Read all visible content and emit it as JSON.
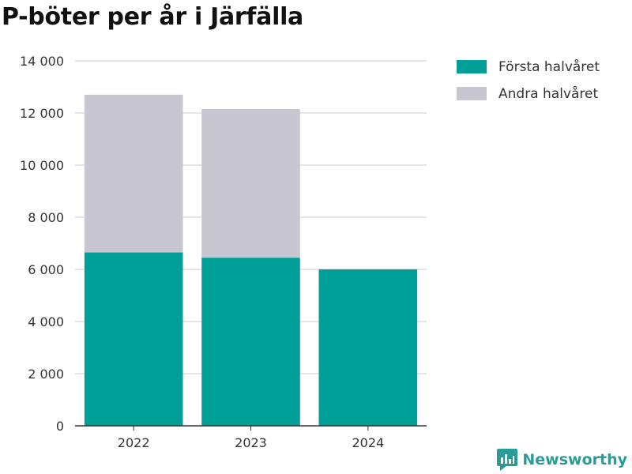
{
  "chart_data": {
    "type": "bar",
    "stacked": true,
    "title": "P-böter per år i Järfälla",
    "xlabel": "",
    "ylabel": "",
    "categories": [
      "2022",
      "2023",
      "2024"
    ],
    "series": [
      {
        "name": "Första halvåret",
        "color": "#00a099",
        "values": [
          6650,
          6450,
          6000
        ]
      },
      {
        "name": "Andra halvåret",
        "color": "#c8c7d1",
        "values": [
          6050,
          5700,
          0
        ]
      }
    ],
    "ylim": [
      0,
      14000
    ],
    "yticks": [
      0,
      2000,
      4000,
      6000,
      8000,
      10000,
      12000,
      14000
    ],
    "ytick_labels": [
      "0",
      "2 000",
      "4 000",
      "6 000",
      "8 000",
      "10 000",
      "12 000",
      "14 000"
    ],
    "grid": true,
    "legend_position": "top-right"
  },
  "brand": {
    "name": "Newsworthy",
    "color": "#2a9c96",
    "icon": "newsworthy-logo-icon"
  }
}
